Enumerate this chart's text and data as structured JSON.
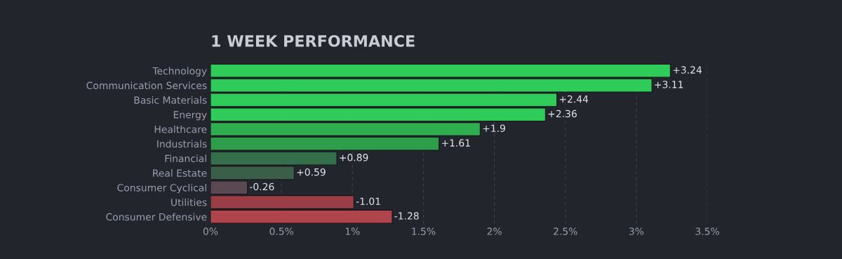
{
  "chart_data": {
    "type": "bar",
    "orientation": "horizontal",
    "title": "1 WEEK PERFORMANCE",
    "categories": [
      "Technology",
      "Communication Services",
      "Basic Materials",
      "Energy",
      "Healthcare",
      "Industrials",
      "Financial",
      "Real Estate",
      "Consumer Cyclical",
      "Utilities",
      "Consumer Defensive"
    ],
    "values": [
      3.24,
      3.11,
      2.44,
      2.36,
      1.9,
      1.61,
      0.89,
      0.59,
      -0.26,
      -1.01,
      -1.28
    ],
    "base": [
      0,
      0,
      0,
      0,
      0,
      0,
      0,
      0,
      0.26,
      1.01,
      1.28
    ],
    "value_labels": [
      "+3.24",
      "+3.11",
      "+2.44",
      "+2.36",
      "+1.9",
      "+1.61",
      "+0.89",
      "+0.59",
      "-0.26",
      "-1.01",
      "-1.28"
    ],
    "colors": [
      "#30cc5a",
      "#30cc5a",
      "#30cc5a",
      "#30cc5a",
      "#2fae50",
      "#2e9e4a",
      "#356e4a",
      "#3a5e48",
      "#5a4852",
      "#9b3d47",
      "#b0444b"
    ],
    "xlim": [
      0,
      3.5
    ],
    "xticks": [
      {
        "value": 0,
        "label": "0%"
      },
      {
        "value": 0.5,
        "label": "0.5%"
      },
      {
        "value": 1,
        "label": "1%"
      },
      {
        "value": 1.5,
        "label": "1.5%"
      },
      {
        "value": 2,
        "label": "2%"
      },
      {
        "value": 2.5,
        "label": "2.5%"
      },
      {
        "value": 3,
        "label": "3%"
      },
      {
        "value": 3.5,
        "label": "3.5%"
      }
    ],
    "grid": "x",
    "legend": false
  }
}
